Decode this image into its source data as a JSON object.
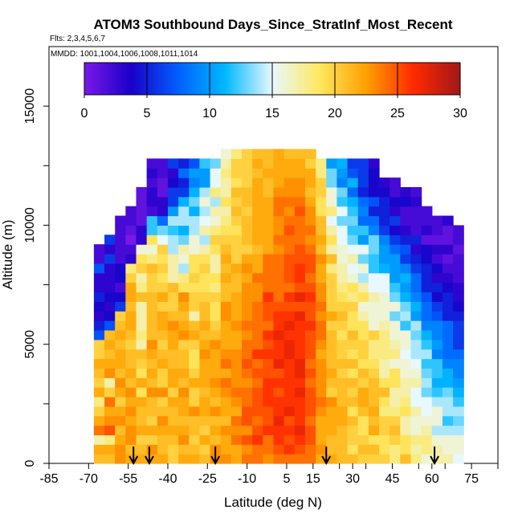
{
  "chart_data": {
    "type": "heatmap",
    "title": "ATOM3 Southbound Days_Since_StratInf_Most_Recent",
    "subtitle": "Flts: 2,3,4,5,6,7",
    "mmdd": "MMDD: 1001,1004,1006,1008,1011,1014",
    "xlabel": "Latitude (deg N)",
    "ylabel": "Altitude (m)",
    "xlim": [
      -85,
      85
    ],
    "ylim": [
      0,
      17500
    ],
    "x_ticks_labeled": [
      "-85",
      "-70",
      "-55",
      "-40",
      "-25",
      "-10",
      "5",
      "15",
      "30",
      "45",
      "60",
      "75"
    ],
    "y_ticks": [
      "0",
      "5000",
      "10000",
      "15000"
    ],
    "colorbar": {
      "range": [
        0,
        30
      ],
      "ticks": [
        "0",
        "5",
        "10",
        "15",
        "20",
        "25",
        "30"
      ],
      "colors": [
        "#7a18e8",
        "#1a00c8",
        "#0060ff",
        "#00b8ff",
        "#e8f8ff",
        "#ffe860",
        "#ffa000",
        "#ff2a00",
        "#a01818"
      ]
    },
    "profile_markers_lat": [
      -53,
      -47,
      -22,
      20,
      61
    ],
    "data_coverage": {
      "lat_range": [
        -70,
        72
      ],
      "alt_range": [
        0,
        13000
      ],
      "summary": "Mostly 18-28 days across the tropics and mid-latitudes; 0-10 days near 10-12 km poleward of 40 deg and near -60 to -45 deg latitude"
    },
    "series": [
      {
        "lat": -66,
        "top": 10000,
        "values": [
          21,
          22,
          17,
          24,
          22,
          20,
          18,
          22,
          20,
          21,
          22,
          20,
          20,
          7,
          5,
          3,
          4,
          5,
          3,
          3,
          7,
          2,
          2
        ]
      },
      {
        "lat": -62,
        "top": 10500,
        "values": [
          21,
          22,
          18,
          25,
          23,
          22,
          24,
          20,
          17,
          23,
          22,
          21,
          22,
          21,
          7,
          4,
          3,
          4,
          3,
          3,
          3,
          6,
          3,
          6
        ]
      },
      {
        "lat": -58,
        "top": 11000,
        "values": [
          23,
          23,
          22,
          21,
          23,
          22,
          20,
          22,
          23,
          21,
          22,
          22,
          21,
          22,
          21,
          20,
          6,
          4,
          2,
          4,
          4,
          2,
          2,
          2,
          2,
          2
        ]
      },
      {
        "lat": -54,
        "top": 11500,
        "values": [
          22,
          21,
          23,
          23,
          22,
          23,
          22,
          23,
          21,
          22,
          21,
          21,
          20,
          21,
          22,
          22,
          21,
          22,
          22,
          20,
          18,
          3,
          2,
          0,
          1,
          2,
          2
        ]
      },
      {
        "lat": -50,
        "top": 12000,
        "values": [
          22,
          21,
          20,
          22,
          21,
          21,
          22,
          19,
          22,
          19,
          20,
          21,
          17,
          18,
          17,
          17,
          17,
          21,
          18,
          17,
          20,
          19,
          16,
          3,
          3,
          1,
          1,
          1,
          1
        ]
      },
      {
        "lat": -46,
        "top": 12500,
        "values": [
          22,
          23,
          20,
          22,
          20,
          21,
          21,
          23,
          21,
          22,
          21,
          22,
          23,
          21,
          21,
          21,
          21,
          21,
          20,
          20,
          21,
          18,
          16,
          19,
          12,
          12,
          2,
          3,
          3,
          2,
          3,
          2
        ]
      },
      {
        "lat": -42,
        "top": 12500,
        "values": [
          22,
          21,
          21,
          22,
          23,
          21,
          20,
          23,
          20,
          20,
          22,
          21,
          20,
          21,
          22,
          22,
          20,
          22,
          20,
          19,
          20,
          19,
          20,
          15,
          13,
          8,
          3,
          3,
          1,
          1,
          2,
          2
        ]
      },
      {
        "lat": -38,
        "top": 12500,
        "values": [
          20,
          20,
          21,
          22,
          21,
          21,
          22,
          20,
          22,
          22,
          21,
          21,
          22,
          22,
          23,
          21,
          20,
          20,
          21,
          17,
          17,
          17,
          14,
          14,
          12,
          14,
          10,
          6,
          6,
          4,
          3,
          6
        ]
      },
      {
        "lat": -34,
        "top": 12500,
        "values": [
          22,
          21,
          23,
          22,
          21,
          22,
          22,
          23,
          21,
          22,
          21,
          21,
          20,
          23,
          22,
          21,
          22,
          23,
          19,
          18,
          14,
          16,
          17,
          13,
          11,
          14,
          14,
          11,
          6,
          5,
          8,
          5
        ]
      },
      {
        "lat": -30,
        "top": 12500,
        "values": [
          22,
          21,
          20,
          21,
          21,
          23,
          20,
          20,
          22,
          20,
          19,
          19,
          20,
          22,
          21,
          17,
          20,
          20,
          19,
          20,
          19,
          19,
          16,
          16,
          14,
          14,
          11,
          13,
          11,
          9,
          10,
          7
        ]
      },
      {
        "lat": -26,
        "top": 12500,
        "values": [
          21,
          20,
          22,
          20,
          21,
          22,
          22,
          21,
          22,
          22,
          22,
          23,
          22,
          21,
          22,
          21,
          21,
          20,
          19,
          19,
          20,
          19,
          17,
          14,
          17,
          15,
          14,
          16,
          14,
          10,
          10,
          12
        ]
      },
      {
        "lat": -22,
        "top": 12500,
        "values": [
          23,
          23,
          21,
          22,
          21,
          23,
          21,
          22,
          23,
          22,
          22,
          22,
          23,
          21,
          20,
          19,
          19,
          20,
          18,
          19,
          17,
          17,
          19,
          20,
          18,
          16,
          17,
          14,
          18,
          15,
          15,
          13
        ]
      },
      {
        "lat": -18,
        "top": 13000,
        "values": [
          23,
          22,
          22,
          23,
          21,
          22,
          22,
          23,
          24,
          22,
          24,
          23,
          22,
          22,
          22,
          23,
          23,
          21,
          21,
          22,
          21,
          22,
          21,
          20,
          19,
          18,
          17,
          19,
          17,
          17,
          18,
          17,
          16
        ]
      },
      {
        "lat": -14,
        "top": 13000,
        "values": [
          22,
          22,
          24,
          23,
          24,
          22,
          23,
          24,
          23,
          23,
          23,
          23,
          22,
          22,
          23,
          22,
          22,
          22,
          21,
          21,
          22,
          20,
          20,
          20,
          19,
          20,
          21,
          20,
          21,
          19,
          20,
          20,
          18
        ]
      },
      {
        "lat": -10,
        "top": 13000,
        "values": [
          24,
          23,
          25,
          23,
          25,
          25,
          24,
          24,
          23,
          24,
          25,
          24,
          24,
          23,
          24,
          23,
          23,
          23,
          23,
          22,
          23,
          22,
          20,
          21,
          21,
          21,
          20,
          21,
          21,
          20,
          20,
          20,
          20
        ]
      },
      {
        "lat": -6,
        "top": 13000,
        "values": [
          24,
          24,
          26,
          25,
          24,
          25,
          25,
          25,
          24,
          25,
          24,
          26,
          24,
          24,
          24,
          24,
          24,
          23,
          23,
          24,
          22,
          22,
          21,
          22,
          22,
          22,
          22,
          22,
          22,
          22,
          21,
          22,
          21
        ]
      },
      {
        "lat": -2,
        "top": 13000,
        "values": [
          23,
          24,
          24,
          26,
          25,
          25,
          26,
          26,
          26,
          25,
          25,
          26,
          25,
          26,
          24,
          25,
          25,
          26,
          24,
          24,
          24,
          24,
          22,
          22,
          22,
          22,
          22,
          22,
          21,
          21,
          22,
          21,
          21
        ]
      },
      {
        "lat": 2,
        "top": 13000,
        "values": [
          24,
          25,
          26,
          26,
          27,
          26,
          26,
          25,
          26,
          25,
          27,
          26,
          26,
          27,
          26,
          26,
          25,
          24,
          24,
          24,
          24,
          24,
          23,
          24,
          23,
          23,
          24,
          24,
          23,
          22,
          22,
          22,
          22
        ]
      },
      {
        "lat": 6,
        "top": 13000,
        "values": [
          24,
          26,
          25,
          26,
          25,
          27,
          26,
          26,
          26,
          26,
          26,
          27,
          27,
          26,
          27,
          26,
          25,
          26,
          24,
          25,
          25,
          25,
          24,
          24,
          25,
          24,
          23,
          24,
          23,
          23,
          22,
          22,
          21
        ]
      },
      {
        "lat": 10,
        "top": 13000,
        "values": [
          24,
          25,
          26,
          27,
          26,
          26,
          26,
          27,
          26,
          27,
          27,
          26,
          26,
          26,
          26,
          27,
          25,
          27,
          25,
          26,
          26,
          25,
          25,
          24,
          24,
          24,
          25,
          24,
          23,
          23,
          22,
          22,
          21
        ]
      },
      {
        "lat": 14,
        "top": 13000,
        "values": [
          24,
          24,
          25,
          25,
          24,
          25,
          25,
          25,
          24,
          25,
          24,
          25,
          25,
          25,
          26,
          25,
          25,
          26,
          25,
          24,
          25,
          25,
          24,
          23,
          24,
          23,
          23,
          22,
          21,
          22,
          22,
          20,
          21
        ]
      },
      {
        "lat": 18,
        "top": 12500,
        "values": [
          22,
          23,
          22,
          22,
          22,
          23,
          24,
          23,
          23,
          23,
          23,
          22,
          23,
          24,
          24,
          23,
          24,
          23,
          23,
          22,
          22,
          23,
          21,
          22,
          21,
          21,
          19,
          19,
          20,
          20,
          18,
          18
        ]
      },
      {
        "lat": 22,
        "top": 12500,
        "values": [
          22,
          21,
          21,
          22,
          22,
          22,
          23,
          20,
          21,
          22,
          21,
          21,
          21,
          21,
          20,
          22,
          20,
          20,
          20,
          20,
          18,
          21,
          17,
          19,
          17,
          15,
          18,
          16,
          16,
          13,
          13,
          10
        ]
      },
      {
        "lat": 26,
        "top": 12500,
        "values": [
          21,
          21,
          21,
          21,
          22,
          22,
          21,
          21,
          21,
          20,
          21,
          20,
          20,
          19,
          20,
          21,
          20,
          19,
          18,
          17,
          17,
          16,
          16,
          15,
          15,
          13,
          15,
          12,
          13,
          9,
          10,
          11
        ]
      },
      {
        "lat": 30,
        "top": 12500,
        "values": [
          21,
          19,
          20,
          20,
          21,
          19,
          21,
          20,
          21,
          19,
          21,
          19,
          20,
          21,
          19,
          19,
          20,
          18,
          19,
          16,
          15,
          17,
          15,
          13,
          12,
          13,
          12,
          11,
          8,
          11,
          7,
          6
        ]
      },
      {
        "lat": 34,
        "top": 12500,
        "values": [
          20,
          21,
          20,
          19,
          19,
          21,
          22,
          22,
          20,
          21,
          19,
          20,
          20,
          19,
          19,
          17,
          16,
          19,
          17,
          14,
          16,
          13,
          15,
          10,
          12,
          8,
          9,
          8,
          5,
          6,
          6,
          6
        ]
      },
      {
        "lat": 38,
        "top": 12500,
        "values": [
          20,
          21,
          19,
          22,
          21,
          22,
          21,
          21,
          21,
          20,
          19,
          18,
          18,
          20,
          16,
          16,
          16,
          17,
          15,
          15,
          12,
          12,
          13,
          13,
          9,
          8,
          5,
          7,
          4,
          4,
          4,
          3
        ]
      },
      {
        "lat": 42,
        "top": 12000,
        "values": [
          20,
          19,
          19,
          20,
          20,
          18,
          19,
          21,
          19,
          17,
          17,
          18,
          18,
          18,
          17,
          16,
          16,
          16,
          15,
          15,
          11,
          10,
          10,
          9,
          6,
          5,
          5,
          5,
          4,
          3
        ]
      },
      {
        "lat": 46,
        "top": 12000,
        "values": [
          18,
          18,
          20,
          21,
          20,
          18,
          17,
          17,
          19,
          19,
          16,
          18,
          17,
          16,
          16,
          13,
          16,
          13,
          12,
          10,
          10,
          10,
          8,
          6,
          4,
          6,
          3,
          4,
          2,
          2
        ]
      },
      {
        "lat": 50,
        "top": 11500,
        "values": [
          21,
          19,
          19,
          17,
          17,
          19,
          18,
          17,
          17,
          16,
          16,
          15,
          16,
          16,
          12,
          14,
          13,
          11,
          10,
          11,
          9,
          6,
          7,
          5,
          3,
          2,
          2,
          4,
          3
        ]
      },
      {
        "lat": 54,
        "top": 11500,
        "values": [
          18,
          17,
          18,
          16,
          16,
          17,
          15,
          15,
          17,
          16,
          15,
          14,
          14,
          13,
          14,
          10,
          11,
          9,
          8,
          8,
          6,
          5,
          3,
          5,
          2,
          2,
          2,
          3,
          2
        ]
      },
      {
        "lat": 58,
        "top": 11000,
        "values": [
          16,
          18,
          18,
          17,
          16,
          15,
          15,
          13,
          14,
          13,
          12,
          14,
          12,
          11,
          9,
          8,
          8,
          7,
          5,
          5,
          5,
          4,
          4,
          1,
          3,
          2,
          2
        ]
      },
      {
        "lat": 62,
        "top": 10500,
        "values": [
          17,
          17,
          16,
          14,
          16,
          16,
          14,
          12,
          11,
          12,
          12,
          9,
          10,
          9,
          9,
          7,
          6,
          4,
          5,
          3,
          4,
          2,
          3,
          1,
          2,
          2
        ]
      },
      {
        "lat": 66,
        "top": 10500,
        "values": [
          17,
          16,
          16,
          14,
          12,
          14,
          14,
          13,
          11,
          11,
          9,
          8,
          8,
          8,
          8,
          5,
          5,
          5,
          4,
          3,
          2,
          1,
          3,
          1,
          1,
          3
        ]
      },
      {
        "lat": 70,
        "top": 10000,
        "values": [
          15,
          16,
          16,
          14,
          13,
          14,
          12,
          11,
          10,
          9,
          9,
          8,
          6,
          6,
          6,
          5,
          4,
          3,
          3,
          2,
          2,
          2,
          1,
          2,
          2
        ]
      }
    ]
  }
}
